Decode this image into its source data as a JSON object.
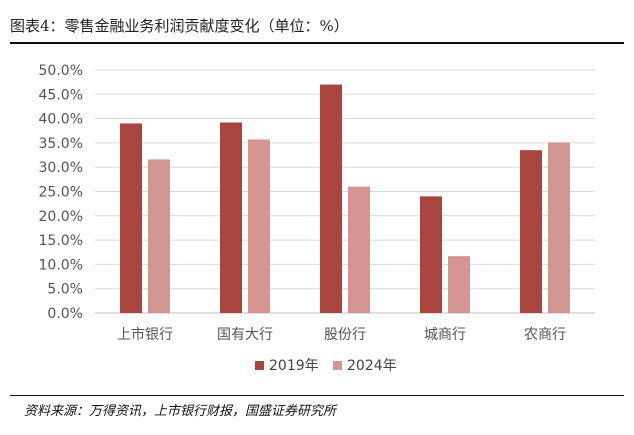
{
  "header": {
    "title": "图表4：零售金融业务利润贡献度变化（单位：%）"
  },
  "footer": {
    "source": "资料来源：万得资讯，上市银行财报，国盛证券研究所"
  },
  "colors": {
    "s2019": "#a9443f",
    "s2024": "#d59593",
    "grid": "#d9d9d9",
    "axis": "#bfbfbf"
  },
  "chart_data": {
    "type": "bar",
    "title": "",
    "xlabel": "",
    "ylabel": "",
    "categories": [
      "上市银行",
      "国有大行",
      "股份行",
      "城商行",
      "农商行"
    ],
    "series": [
      {
        "name": "2019年",
        "values": [
          39.0,
          39.2,
          47.0,
          24.0,
          33.5
        ]
      },
      {
        "name": "2024年",
        "values": [
          31.6,
          35.7,
          26.0,
          11.7,
          35.1
        ]
      }
    ],
    "ylim": [
      0,
      50
    ],
    "yticks": [
      "0.0%",
      "5.0%",
      "10.0%",
      "15.0%",
      "20.0%",
      "25.0%",
      "30.0%",
      "35.0%",
      "40.0%",
      "45.0%",
      "50.0%"
    ],
    "grid": true,
    "legend_position": "bottom"
  }
}
